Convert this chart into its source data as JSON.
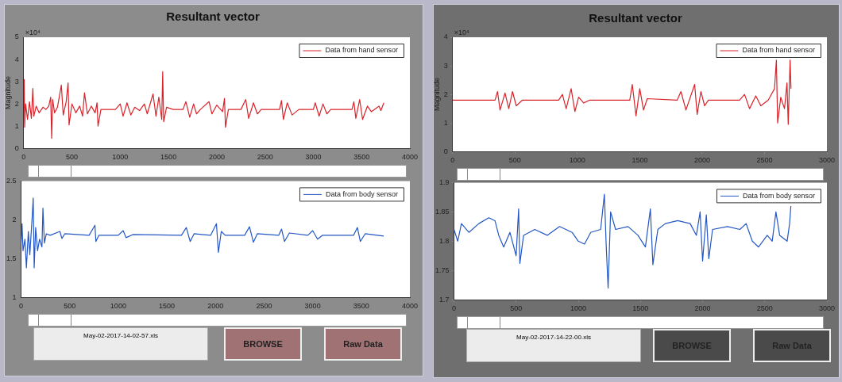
{
  "chart_data": [
    {
      "type": "line",
      "title": "Resultant vector",
      "ylabel": "Magnitude",
      "annotations": [
        "×10⁴"
      ],
      "legend": "top right",
      "grid": false,
      "xlim": [
        0,
        4000
      ],
      "xticks": [
        0,
        500,
        1000,
        1500,
        2000,
        2500,
        3000,
        3500,
        4000
      ],
      "ylim": [
        0,
        5
      ],
      "yticks": [
        0,
        1,
        2,
        3,
        4,
        5
      ],
      "x": [
        0,
        5,
        10,
        20,
        40,
        60,
        80,
        95,
        105,
        130,
        160,
        200,
        230,
        260,
        280,
        290,
        300,
        320,
        350,
        390,
        410,
        440,
        460,
        470,
        500,
        540,
        580,
        610,
        630,
        660,
        700,
        740,
        760,
        770,
        800,
        950,
        1000,
        1030,
        1070,
        1110,
        1150,
        1200,
        1250,
        1280,
        1340,
        1370,
        1400,
        1430,
        1440,
        1450,
        1480,
        1550,
        1650,
        1680,
        1720,
        1760,
        1790,
        1830,
        1920,
        1950,
        2000,
        2060,
        2080,
        2090,
        2120,
        2250,
        2300,
        2330,
        2380,
        2420,
        2460,
        2650,
        2670,
        2690,
        2730,
        2780,
        2850,
        3000,
        3020,
        3060,
        3100,
        3140,
        3180,
        3400,
        3420,
        3440,
        3480,
        3510,
        3560,
        3600,
        3680,
        3700,
        3730
      ],
      "series": [
        {
          "name": "Data from hand sensor",
          "color": "#d9232b",
          "values": [
            1.8,
            3.1,
            0.95,
            2.0,
            1.3,
            2.1,
            1.35,
            2.7,
            1.45,
            1.9,
            1.6,
            1.85,
            1.75,
            1.9,
            2.3,
            0.45,
            2.2,
            1.6,
            1.85,
            2.85,
            1.5,
            2.1,
            2.95,
            1.05,
            2.0,
            1.6,
            1.9,
            1.45,
            2.5,
            1.55,
            1.9,
            1.6,
            2.05,
            1.0,
            1.75,
            1.75,
            2.0,
            1.45,
            2.05,
            1.5,
            1.85,
            1.7,
            2.0,
            1.55,
            2.45,
            1.45,
            2.3,
            1.3,
            3.45,
            1.2,
            1.85,
            1.75,
            1.75,
            2.1,
            1.4,
            2.0,
            1.55,
            1.75,
            2.1,
            1.55,
            1.95,
            1.65,
            2.25,
            0.95,
            1.75,
            1.75,
            2.2,
            1.35,
            2.05,
            1.55,
            1.75,
            1.75,
            2.15,
            1.3,
            2.05,
            1.5,
            1.75,
            1.75,
            2.05,
            1.45,
            2.0,
            1.55,
            1.75,
            1.75,
            2.1,
            1.35,
            2.2,
            1.3,
            1.9,
            1.65,
            1.9,
            1.7,
            2.05
          ]
        }
      ]
    },
    {
      "type": "line",
      "annotations": [
        "May-02-2017-14-02-57.xls",
        "BROWSE",
        "Raw Data"
      ],
      "legend": "top right",
      "grid": false,
      "xlim": [
        0,
        4000
      ],
      "xticks": [
        0,
        500,
        1000,
        1500,
        2000,
        2500,
        3000,
        3500,
        4000
      ],
      "ylim": [
        1,
        2.5
      ],
      "yticks": [
        1,
        1.5,
        2,
        2.5
      ],
      "x": [
        0,
        10,
        20,
        40,
        55,
        75,
        90,
        115,
        125,
        135,
        150,
        170,
        190,
        215,
        225,
        240,
        260,
        300,
        400,
        420,
        450,
        700,
        760,
        770,
        800,
        1000,
        1050,
        1080,
        1150,
        1650,
        1700,
        1740,
        1780,
        1950,
        2010,
        2030,
        2060,
        2100,
        2300,
        2350,
        2390,
        2430,
        2650,
        2680,
        2710,
        2760,
        2950,
        3000,
        3050,
        3100,
        3420,
        3460,
        3490,
        3540,
        3730
      ],
      "series": [
        {
          "name": "Data from body sensor",
          "color": "#2457c5",
          "values": [
            1.7,
            1.95,
            1.6,
            1.75,
            1.38,
            1.85,
            1.55,
            2.05,
            2.28,
            1.38,
            1.9,
            1.6,
            1.75,
            1.65,
            2.15,
            1.7,
            1.82,
            1.8,
            1.85,
            1.76,
            1.82,
            1.8,
            1.93,
            1.72,
            1.8,
            1.8,
            1.86,
            1.77,
            1.81,
            1.8,
            1.9,
            1.72,
            1.82,
            1.8,
            1.95,
            1.58,
            1.85,
            1.8,
            1.8,
            1.91,
            1.71,
            1.82,
            1.8,
            1.88,
            1.72,
            1.83,
            1.8,
            1.86,
            1.75,
            1.8,
            1.8,
            1.9,
            1.72,
            1.82,
            1.79
          ]
        }
      ]
    },
    {
      "type": "line",
      "title": "Resultant vector",
      "ylabel": "Magnitude",
      "annotations": [
        "×10⁴"
      ],
      "legend": "top right",
      "grid": false,
      "xlim": [
        0,
        3000
      ],
      "xticks": [
        0,
        500,
        1000,
        1500,
        2000,
        2500,
        3000
      ],
      "ylim": [
        0,
        4
      ],
      "yticks": [
        0,
        1,
        2,
        3,
        4
      ],
      "x": [
        0,
        340,
        360,
        380,
        420,
        450,
        480,
        510,
        560,
        850,
        880,
        910,
        950,
        980,
        1010,
        1050,
        1100,
        1420,
        1440,
        1470,
        1500,
        1530,
        1560,
        1800,
        1830,
        1870,
        1940,
        1960,
        1990,
        2020,
        2050,
        2300,
        2340,
        2380,
        2430,
        2470,
        2530,
        2580,
        2595,
        2605,
        2630,
        2660,
        2680,
        2690,
        2705,
        2712
      ],
      "series": [
        {
          "name": "Data from hand sensor",
          "color": "#d9232b",
          "values": [
            1.8,
            1.8,
            2.1,
            1.45,
            2.05,
            1.5,
            2.1,
            1.6,
            1.8,
            1.8,
            2.0,
            1.5,
            2.2,
            1.4,
            1.9,
            1.7,
            1.8,
            1.8,
            2.35,
            1.25,
            2.2,
            1.45,
            1.85,
            1.8,
            2.1,
            1.45,
            2.35,
            1.3,
            2.1,
            1.6,
            1.8,
            1.8,
            2.0,
            1.5,
            1.95,
            1.6,
            1.8,
            2.2,
            3.2,
            1.0,
            1.9,
            1.5,
            2.4,
            0.95,
            3.2,
            2.2
          ]
        }
      ]
    },
    {
      "type": "line",
      "annotations": [
        "May-02-2017-14-22-00.xls",
        "BROWSE",
        "Raw Data"
      ],
      "legend": "top right",
      "grid": false,
      "xlim": [
        0,
        3000
      ],
      "xticks": [
        0,
        500,
        1000,
        1500,
        2000,
        2500,
        3000
      ],
      "ylim": [
        1.7,
        1.9
      ],
      "yticks": [
        1.7,
        1.75,
        1.8,
        1.85,
        1.9
      ],
      "x": [
        0,
        30,
        60,
        120,
        200,
        280,
        330,
        360,
        400,
        450,
        500,
        520,
        530,
        560,
        650,
        750,
        850,
        950,
        1000,
        1050,
        1100,
        1180,
        1210,
        1225,
        1240,
        1260,
        1300,
        1400,
        1480,
        1540,
        1580,
        1600,
        1640,
        1700,
        1800,
        1900,
        1950,
        1980,
        2000,
        2030,
        2050,
        2080,
        2200,
        2300,
        2350,
        2400,
        2450,
        2520,
        2560,
        2590,
        2620,
        2680,
        2700,
        2710
      ],
      "series": [
        {
          "name": "Data from body sensor",
          "color": "#2457c5",
          "values": [
            1.82,
            1.8,
            1.83,
            1.815,
            1.83,
            1.84,
            1.835,
            1.81,
            1.79,
            1.815,
            1.775,
            1.855,
            1.762,
            1.81,
            1.82,
            1.81,
            1.825,
            1.815,
            1.8,
            1.795,
            1.815,
            1.82,
            1.88,
            1.79,
            1.72,
            1.85,
            1.82,
            1.825,
            1.81,
            1.79,
            1.855,
            1.76,
            1.82,
            1.83,
            1.835,
            1.83,
            1.81,
            1.85,
            1.766,
            1.845,
            1.77,
            1.82,
            1.825,
            1.82,
            1.83,
            1.8,
            1.79,
            1.81,
            1.8,
            1.85,
            1.81,
            1.8,
            1.83,
            1.86
          ]
        }
      ]
    }
  ]
}
